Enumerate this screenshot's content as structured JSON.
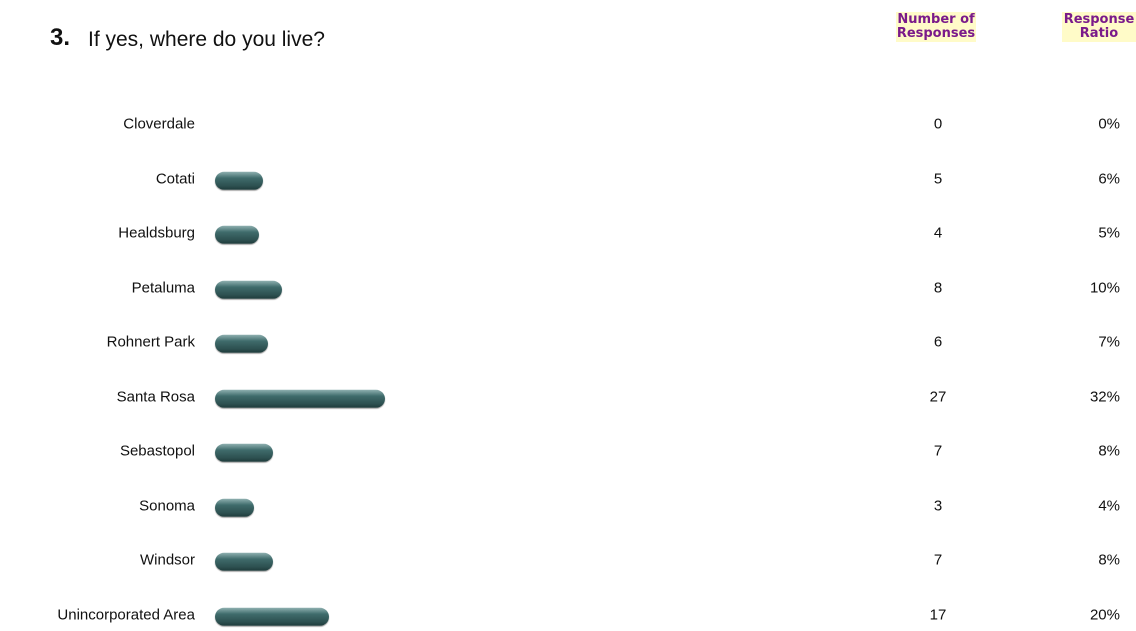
{
  "chart_data": {
    "type": "bar",
    "number": "3.",
    "title": "If yes, where do you live?",
    "categories": [
      "Cloverdale",
      "Cotati",
      "Healdsburg",
      "Petaluma",
      "Rohnert Park",
      "Santa Rosa",
      "Sebastopol",
      "Sonoma",
      "Windsor",
      "Unincorporated Area"
    ],
    "series": [
      {
        "name": "Number of Responses",
        "values": [
          0,
          5,
          4,
          8,
          6,
          27,
          7,
          3,
          7,
          17
        ]
      },
      {
        "name": "Response Ratio",
        "values": [
          0,
          6,
          5,
          10,
          7,
          32,
          8,
          4,
          8,
          20
        ],
        "value_labels": [
          "0%",
          "6%",
          "5%",
          "10%",
          "7%",
          "32%",
          "8%",
          "4%",
          "8%",
          "20%"
        ]
      }
    ],
    "color": "#3f6b6b"
  }
}
